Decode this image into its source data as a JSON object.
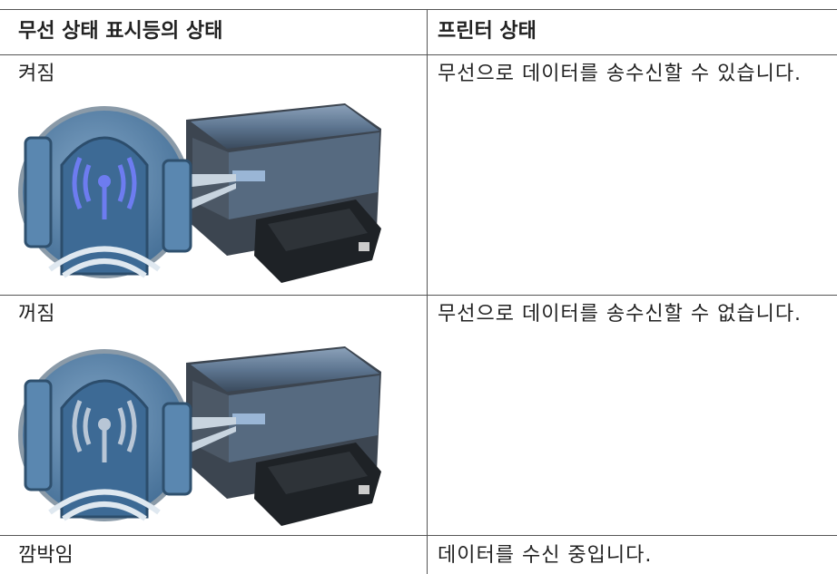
{
  "table": {
    "headers": [
      "무선 상태 표시등의 상태",
      "프린터 상태"
    ],
    "rows": [
      [
        "켜짐",
        "무선으로 데이터를 송수신할 수 있습니다."
      ],
      [
        "꺼짐",
        "무선으로 데이터를 송수신할 수 없습니다."
      ],
      [
        "깜박임",
        "데이터를 수신 중입니다."
      ]
    ]
  }
}
